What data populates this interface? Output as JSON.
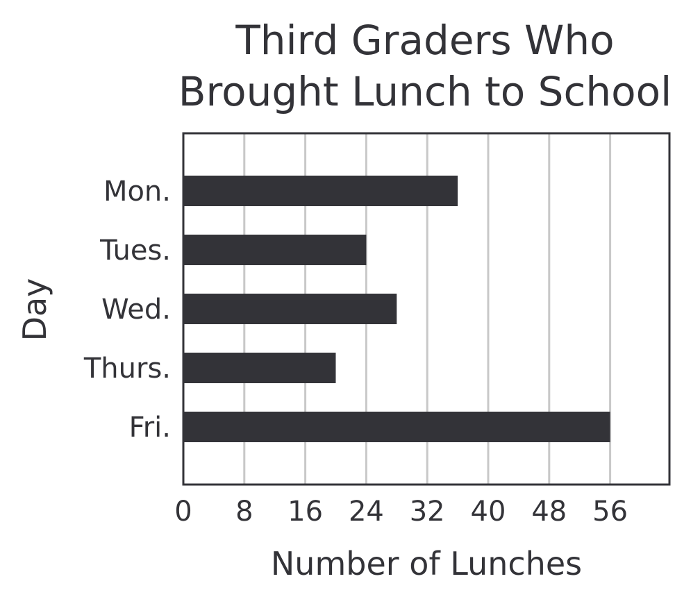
{
  "chart_data": {
    "type": "bar",
    "orientation": "horizontal",
    "title_lines": [
      "Third Graders Who",
      "Brought Lunch to School"
    ],
    "title": "Third Graders Who Brought Lunch to School",
    "xlabel": "Number of Lunches",
    "ylabel": "Day",
    "categories": [
      "Mon.",
      "Tues.",
      "Wed.",
      "Thurs.",
      "Fri."
    ],
    "values": [
      36,
      24,
      28,
      20,
      56
    ],
    "xlim": [
      0,
      64
    ],
    "xticks": [
      0,
      8,
      16,
      24,
      32,
      40,
      48,
      56
    ],
    "xtick_labels": [
      "0",
      "8",
      "16",
      "24",
      "32",
      "40",
      "48",
      "56"
    ],
    "grid": "vertical",
    "legend": "none",
    "bar_color": "#333338",
    "grid_color": "#c8c8c8",
    "frame_color": "#333338",
    "text_color": "#333338"
  }
}
